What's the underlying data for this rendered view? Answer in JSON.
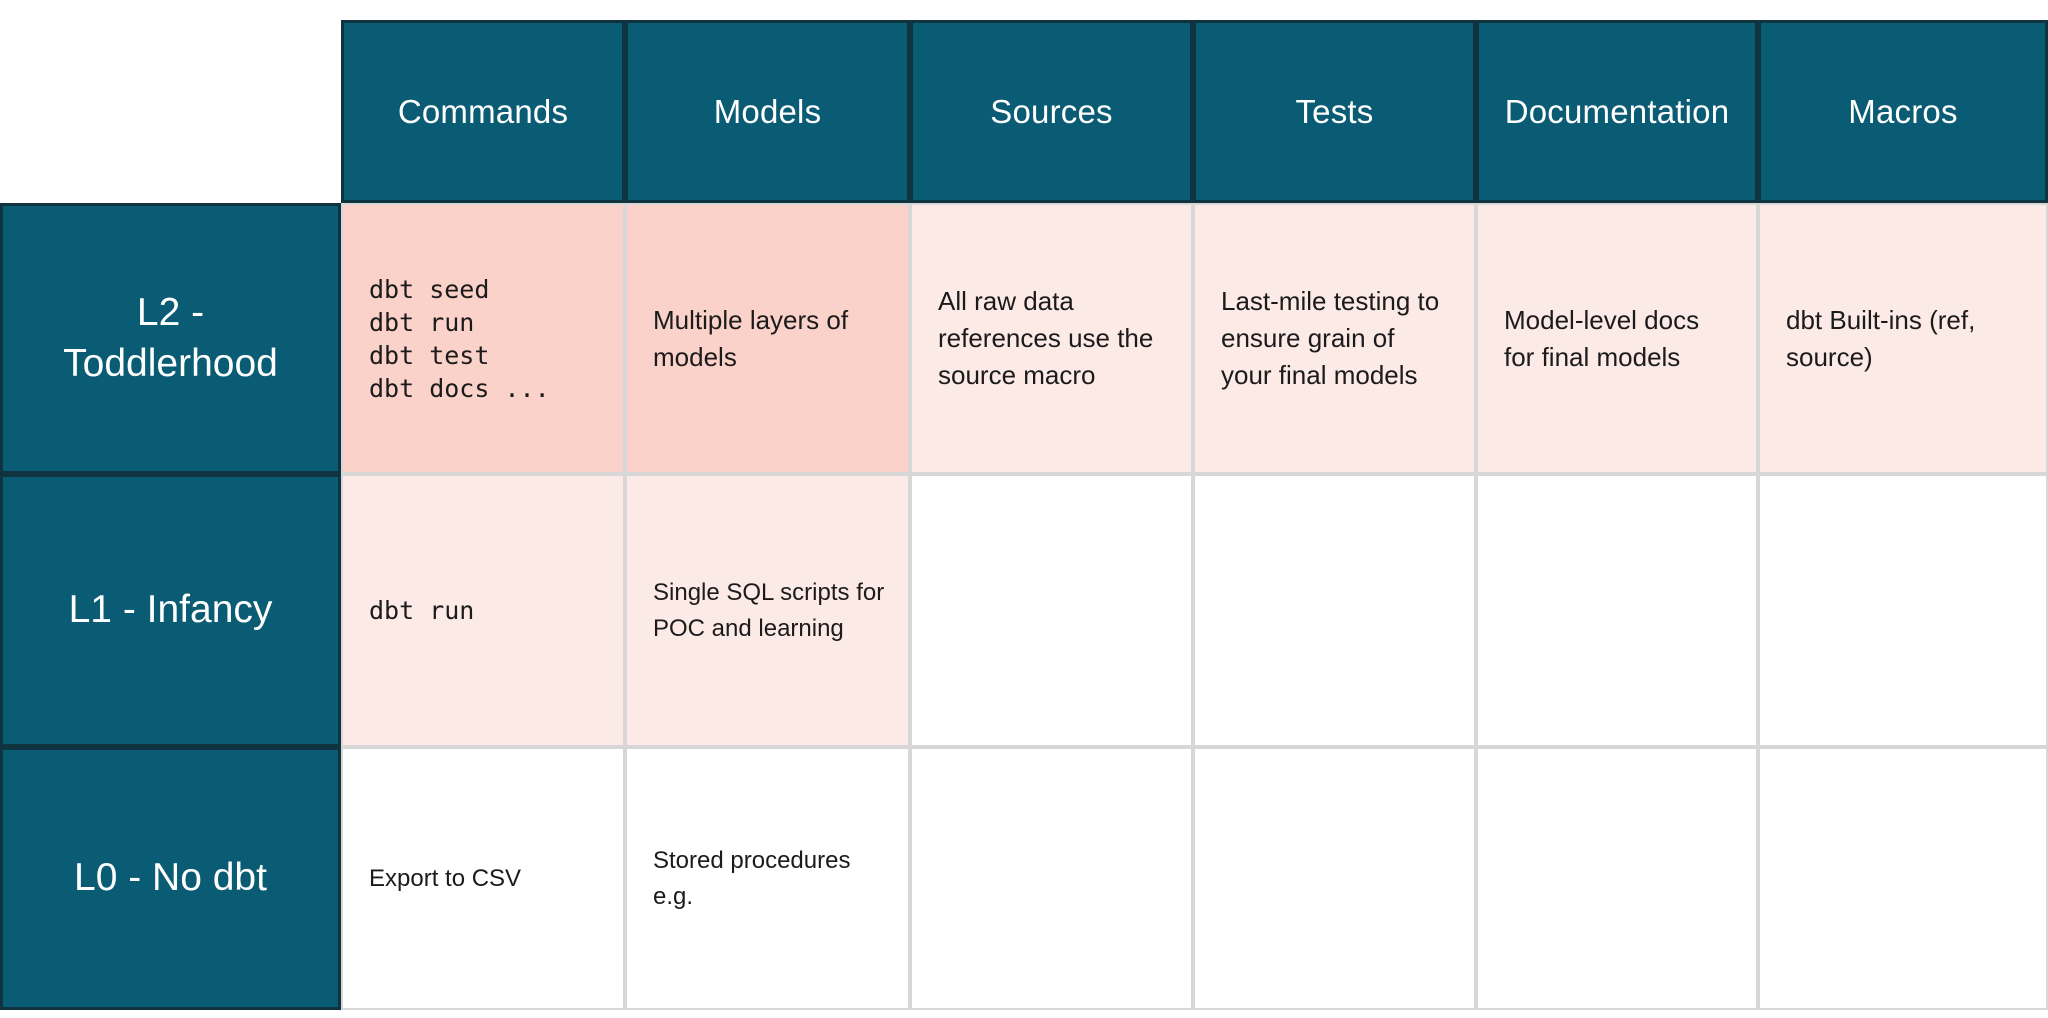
{
  "table": {
    "columns": [
      "Commands",
      "Models",
      "Sources",
      "Tests",
      "Documentation",
      "Macros"
    ],
    "rows": [
      {
        "label": "L2 -\nToddlerhood",
        "cells": [
          {
            "text": "dbt seed\ndbt run\ndbt test\ndbt docs ...",
            "mono": true,
            "bg": "pink-dark"
          },
          {
            "text": "Multiple layers of\nmodels",
            "bg": "pink-dark"
          },
          {
            "text": "All raw data\nreferences use the\nsource macro",
            "bg": "pink-light"
          },
          {
            "text": "Last-mile testing to\nensure grain of\nyour final models",
            "bg": "pink-light"
          },
          {
            "text": "Model-level docs\nfor final models",
            "bg": "pink-light"
          },
          {
            "text": "dbt Built-ins (ref,\nsource)",
            "bg": "pink-light"
          }
        ]
      },
      {
        "label": "L1 - Infancy",
        "cells": [
          {
            "text": "dbt run",
            "mono": true,
            "bg": "pink-light"
          },
          {
            "text": "Single SQL scripts for\nPOC and learning",
            "bg": "pink-light"
          },
          {
            "text": "",
            "bg": "white"
          },
          {
            "text": "",
            "bg": "white"
          },
          {
            "text": "",
            "bg": "white"
          },
          {
            "text": "",
            "bg": "white"
          }
        ]
      },
      {
        "label": "L0 - No dbt",
        "cells": [
          {
            "text": "Export to CSV",
            "bg": "white"
          },
          {
            "text": "Stored procedures\ne.g.",
            "bg": "white"
          },
          {
            "text": "",
            "bg": "white"
          },
          {
            "text": "",
            "bg": "white"
          },
          {
            "text": "",
            "bg": "white"
          },
          {
            "text": "",
            "bg": "white"
          }
        ]
      }
    ]
  },
  "colors": {
    "teal": "#0a5b74",
    "teal_border": "#0f3440",
    "pink_dark": "#fbd2c9",
    "pink_light": "#fceae6",
    "grid_line": "#d7d7d7",
    "text": "#1b1b1b",
    "header_text": "#ffffff"
  }
}
